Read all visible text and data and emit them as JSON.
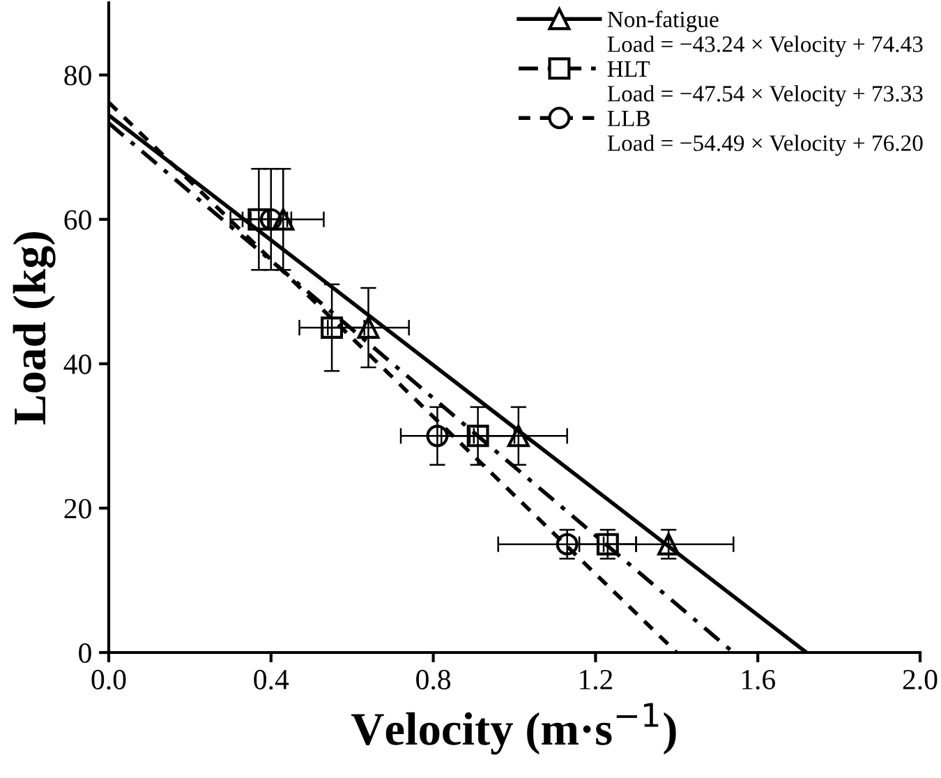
{
  "chart_data": {
    "type": "scatter",
    "xlabel": "Velocity (m·s$^{−1}$)",
    "ylabel": "Load (kg)",
    "xlim": [
      0,
      2.0
    ],
    "ylim": [
      0,
      90
    ],
    "xticks": [
      "0.0",
      0.4,
      0.8,
      1.2,
      1.6,
      "2.0"
    ],
    "yticks": [
      0,
      20,
      40,
      60,
      80
    ],
    "grid": false,
    "legend": "top right",
    "series": [
      {
        "name": "Non-fatigue",
        "color": "#000000",
        "marker": "triangle",
        "line_style": "solid",
        "x": [
          0.43,
          0.64,
          1.01,
          1.38
        ],
        "values": [
          60,
          45,
          30,
          15
        ],
        "errors": [
          7,
          5.5,
          4,
          2
        ],
        "xerrors": [
          0.1,
          0.1,
          0.12,
          0.16
        ]
      },
      {
        "name": "HLT",
        "color": "#000000",
        "marker": "square",
        "line_style": "dashdot",
        "x": [
          0.37,
          0.55,
          0.91,
          1.23
        ],
        "values": [
          60,
          45,
          30,
          15
        ],
        "errors": [
          7,
          6,
          4,
          2
        ],
        "xerrors": [
          0.07,
          0.08,
          0.09,
          0.07
        ]
      },
      {
        "name": "LLB",
        "color": "#000000",
        "marker": "circle",
        "line_style": "dashed",
        "x": [
          0.4,
          0.81,
          1.13
        ],
        "values": [
          60,
          30,
          15
        ],
        "errors": [
          7,
          4,
          2
        ],
        "xerrors": [
          0.05,
          0.09,
          0.17
        ]
      },
      {
        "type": "line",
        "color": "#000000",
        "line_style": "solid",
        "x": [
          0,
          1.72
        ],
        "values": [
          74.43,
          0
        ]
      },
      {
        "type": "line",
        "color": "#000000",
        "line_style": "dashdot",
        "x": [
          0,
          1.54
        ],
        "values": [
          73.33,
          0
        ]
      },
      {
        "type": "line",
        "color": "#000000",
        "line_style": "dashed",
        "x": [
          0,
          1.4
        ],
        "values": [
          76.2,
          0
        ]
      }
    ],
    "annotations": [
      "Load = −43.24 × Velocity + 74.43",
      "Load = −47.54 × Velocity + 73.33",
      "Load = −54.49 × Velocity + 76.20"
    ]
  }
}
